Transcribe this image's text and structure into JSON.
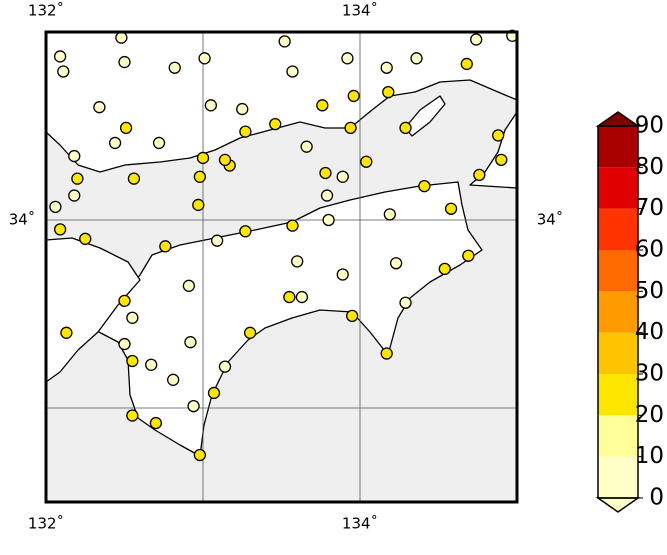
{
  "map": {
    "type": "map",
    "xlim": [
      132,
      135
    ],
    "ylim": [
      32.5,
      35
    ],
    "xticks": [
      {
        "value": 132,
        "label": "132˚"
      },
      {
        "value": 134,
        "label": "134˚"
      }
    ],
    "yticks": [
      {
        "value": 34,
        "label": "34˚"
      }
    ],
    "xgrid": [
      133,
      134
    ],
    "ygrid": [
      33,
      34
    ],
    "stations": {
      "lon": [
        132.48,
        132.09,
        132.11,
        132.5,
        132.82,
        133.01,
        133.52,
        133.57,
        133.92,
        134.17,
        134.36,
        134.74,
        134.97,
        134.68,
        132.34,
        133.05,
        133.25,
        133.76,
        133.96,
        134.18,
        132.51,
        132.44,
        132.72,
        133.27,
        133.46,
        133.94,
        134.29,
        134.88,
        132.18,
        133.0,
        133.17,
        133.14,
        133.66,
        134.04,
        134.9,
        132.2,
        132.56,
        132.98,
        133.78,
        133.89,
        134.41,
        134.76,
        132.06,
        132.18,
        132.97,
        133.79,
        134.19,
        134.58,
        132.09,
        132.25,
        133.09,
        133.27,
        133.57,
        133.8,
        132.76,
        133.6,
        133.89,
        134.23,
        134.69,
        134.54,
        132.91,
        132.5,
        133.55,
        133.63,
        134.29,
        132.55,
        133.95,
        132.13,
        133.3,
        132.5,
        132.92,
        132.55,
        132.67,
        133.14,
        132.81,
        134.17,
        133.07,
        132.94,
        132.55,
        132.7,
        132.98
      ],
      "lat": [
        34.97,
        34.87,
        34.79,
        34.84,
        34.81,
        34.86,
        34.95,
        34.79,
        34.86,
        34.81,
        34.86,
        34.96,
        34.98,
        34.83,
        34.6,
        34.61,
        34.59,
        34.61,
        34.66,
        34.68,
        34.49,
        34.41,
        34.41,
        34.47,
        34.51,
        34.49,
        34.49,
        34.45,
        34.34,
        34.33,
        34.29,
        34.32,
        34.39,
        34.31,
        34.32,
        34.22,
        34.22,
        34.23,
        34.25,
        34.23,
        34.18,
        34.24,
        34.07,
        34.13,
        34.08,
        34.13,
        34.03,
        34.06,
        33.95,
        33.9,
        33.89,
        33.94,
        33.97,
        34.0,
        33.86,
        33.78,
        33.71,
        33.77,
        33.81,
        33.74,
        33.65,
        33.57,
        33.59,
        33.59,
        33.56,
        33.48,
        33.49,
        33.4,
        33.4,
        33.34,
        33.35,
        33.25,
        33.23,
        33.22,
        33.15,
        33.29,
        33.08,
        33.01,
        32.96,
        32.92,
        32.75
      ],
      "values": [
        8,
        8,
        8,
        8,
        8,
        8,
        8,
        8,
        8,
        8,
        8,
        8,
        8,
        25,
        8,
        8,
        8,
        25,
        25,
        25,
        25,
        8,
        8,
        25,
        25,
        25,
        25,
        25,
        8,
        25,
        25,
        25,
        8,
        25,
        25,
        25,
        25,
        25,
        25,
        8,
        25,
        25,
        8,
        8,
        25,
        8,
        8,
        25,
        25,
        25,
        8,
        25,
        25,
        8,
        25,
        8,
        8,
        8,
        25,
        25,
        8,
        25,
        25,
        8,
        8,
        8,
        25,
        25,
        25,
        8,
        8,
        25,
        8,
        8,
        8,
        25,
        25,
        8,
        25,
        25,
        25
      ]
    },
    "colorbar": {
      "ticks": [
        0,
        10,
        20,
        30,
        40,
        50,
        60,
        70,
        80,
        90
      ],
      "colors": [
        "#ffffc8",
        "#ffff99",
        "#ffe600",
        "#ffc400",
        "#ff9a00",
        "#ff6a00",
        "#ff3300",
        "#e00000",
        "#a80000"
      ],
      "over_color": "#800000"
    }
  }
}
